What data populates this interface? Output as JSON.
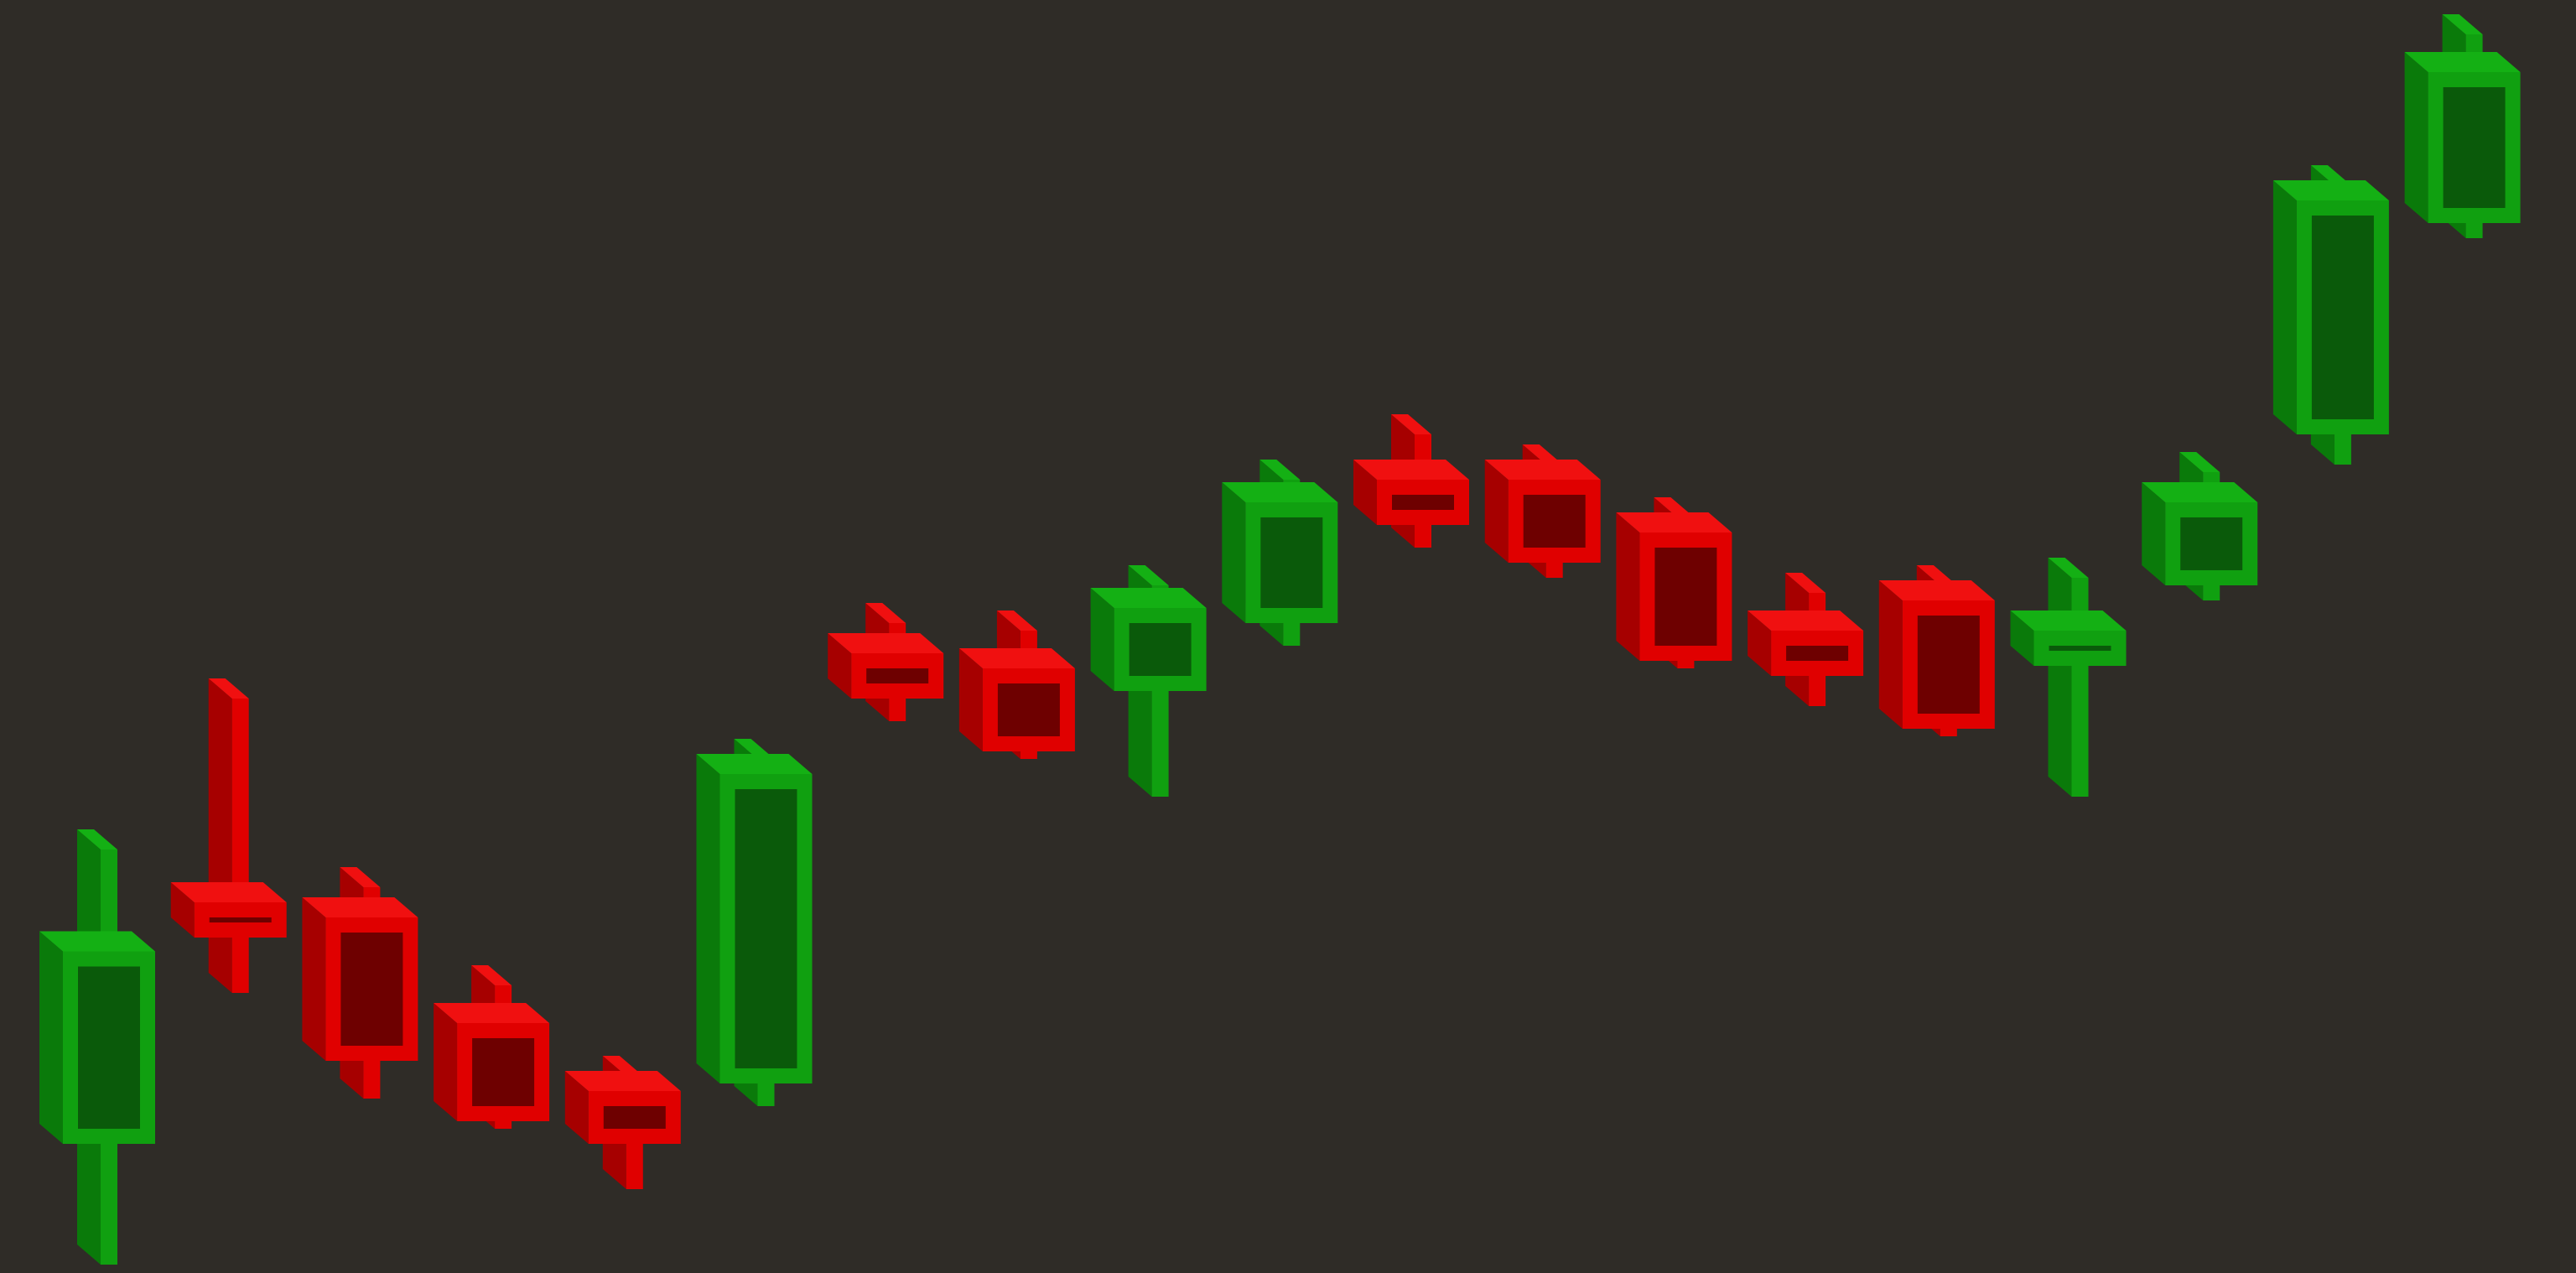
{
  "chart_data": {
    "type": "candlestick",
    "style": "3d-isometric",
    "axes_visible": false,
    "grid": false,
    "legend": "none",
    "colors": {
      "background": "#2f2c27",
      "up_front": "#10a010",
      "up_side": "#0a7a0a",
      "up_top": "#14b014",
      "up_inner": "#0a5a0a",
      "down_front": "#e00000",
      "down_side": "#a60000",
      "down_top": "#f01010",
      "down_inner": "#6e0000"
    },
    "candles": [
      {
        "index": 1,
        "open": 16.0,
        "high": 55.0,
        "low": 0.0,
        "close": 41.5,
        "direction": "up"
      },
      {
        "index": 2,
        "open": 48.0,
        "high": 75.0,
        "low": 36.0,
        "close": 43.5,
        "direction": "down"
      },
      {
        "index": 3,
        "open": 46.0,
        "high": 50.0,
        "low": 22.0,
        "close": 27.0,
        "direction": "down"
      },
      {
        "index": 4,
        "open": 32.0,
        "high": 37.0,
        "low": 18.0,
        "close": 19.0,
        "direction": "down"
      },
      {
        "index": 5,
        "open": 23.0,
        "high": 25.0,
        "low": 10.0,
        "close": 16.0,
        "direction": "down"
      },
      {
        "index": 6,
        "open": 24.0,
        "high": 67.0,
        "low": 21.0,
        "close": 65.0,
        "direction": "up"
      },
      {
        "index": 7,
        "open": 81.0,
        "high": 85.0,
        "low": 72.0,
        "close": 75.0,
        "direction": "down"
      },
      {
        "index": 8,
        "open": 79.0,
        "high": 84.0,
        "low": 67.0,
        "close": 68.0,
        "direction": "down"
      },
      {
        "index": 9,
        "open": 76.0,
        "high": 90.0,
        "low": 62.0,
        "close": 87.0,
        "direction": "up"
      },
      {
        "index": 10,
        "open": 85.0,
        "high": 104.0,
        "low": 82.0,
        "close": 101.0,
        "direction": "up"
      },
      {
        "index": 11,
        "open": 104.0,
        "high": 110.0,
        "low": 95.0,
        "close": 98.0,
        "direction": "down"
      },
      {
        "index": 12,
        "open": 104.0,
        "high": 106.0,
        "low": 91.0,
        "close": 93.0,
        "direction": "down"
      },
      {
        "index": 13,
        "open": 97.0,
        "high": 99.0,
        "low": 79.0,
        "close": 80.0,
        "direction": "down"
      },
      {
        "index": 14,
        "open": 84.0,
        "high": 89.0,
        "low": 74.0,
        "close": 78.0,
        "direction": "down"
      },
      {
        "index": 15,
        "open": 88.0,
        "high": 90.0,
        "low": 70.0,
        "close": 71.0,
        "direction": "down"
      },
      {
        "index": 16,
        "open": 80.0,
        "high": 91.0,
        "low": 62.0,
        "close": 84.0,
        "direction": "up"
      },
      {
        "index": 17,
        "open": 90.0,
        "high": 105.0,
        "low": 88.0,
        "close": 101.0,
        "direction": "up"
      },
      {
        "index": 18,
        "open": 110.0,
        "high": 143.0,
        "low": 106.0,
        "close": 141.0,
        "direction": "up"
      },
      {
        "index": 19,
        "open": 138.0,
        "high": 163.0,
        "low": 136.0,
        "close": 158.0,
        "direction": "up"
      }
    ]
  }
}
